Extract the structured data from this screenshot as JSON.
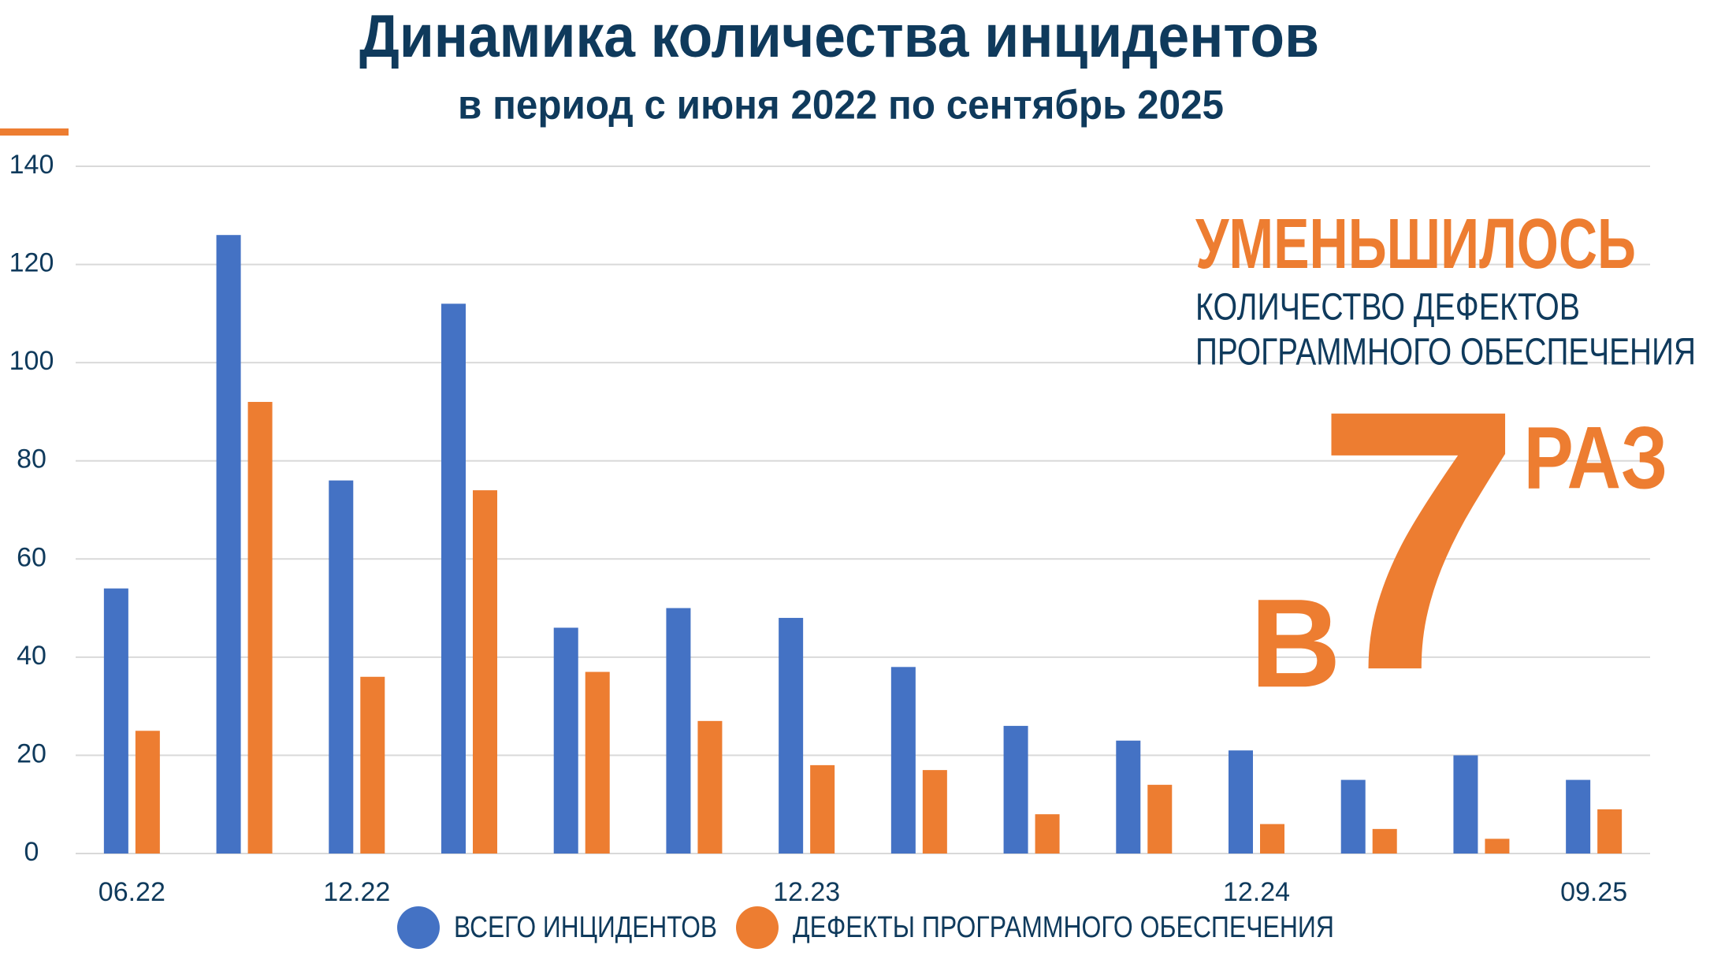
{
  "chart_data": {
    "type": "bar",
    "title": "Динамика количества инцидентов",
    "subtitle": "в период с июня 2022 по сентябрь 2025",
    "categories": [
      "06.22",
      null,
      "12.22",
      null,
      null,
      null,
      "12.23",
      null,
      null,
      null,
      "12.24",
      null,
      null,
      "09.25"
    ],
    "series": [
      {
        "name": "ВСЕГО ИНЦИДЕНТОВ",
        "color": "#4472c4",
        "values": [
          54,
          126,
          76,
          112,
          46,
          50,
          48,
          38,
          26,
          23,
          21,
          15,
          20,
          15
        ]
      },
      {
        "name": "ДЕФЕКТЫ ПРОГРАММНОГО ОБЕСПЕЧЕНИЯ",
        "color": "#ed7d31",
        "values": [
          25,
          92,
          36,
          74,
          37,
          27,
          18,
          17,
          8,
          14,
          6,
          5,
          3,
          9
        ]
      }
    ],
    "ylim": [
      0,
      140
    ],
    "yticks": [
      0,
      20,
      40,
      60,
      80,
      100,
      120,
      140
    ],
    "grid": true,
    "annotations": {
      "headline": "УМЕНЬШИЛОСЬ",
      "line1": "КОЛИЧЕСТВО ДЕФЕКТОВ",
      "line2": "ПРОГРАММНОГО ОБЕСПЕЧЕНИЯ",
      "prefix": "В",
      "number": "7",
      "suffix": "РАЗ"
    }
  }
}
